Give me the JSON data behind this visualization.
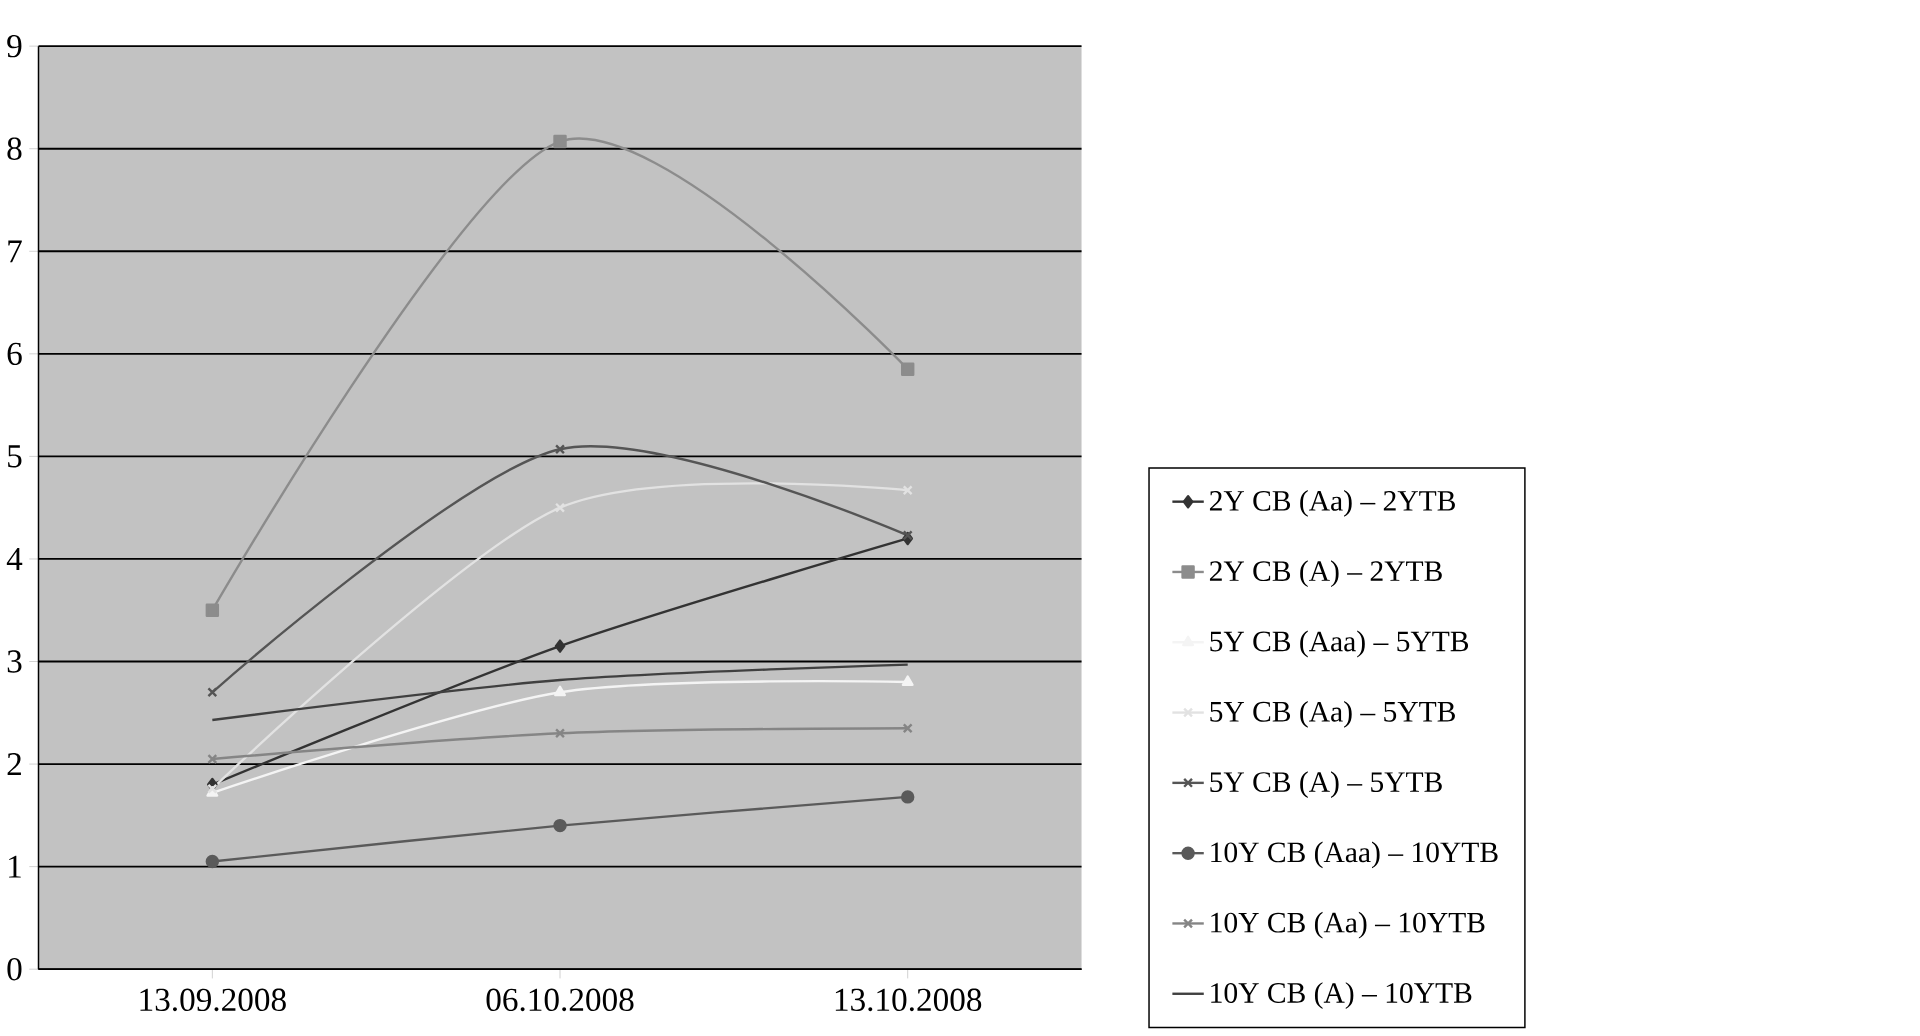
{
  "chart_data": {
    "type": "line",
    "categories": [
      "13.09.2008",
      "06.10.2008",
      "13.10.2008"
    ],
    "series": [
      {
        "name": "2Y CB (Aa) – 2YTB",
        "color": "#333333",
        "marker": "diamond",
        "values": [
          1.8,
          3.15,
          4.2
        ]
      },
      {
        "name": "2Y CB (A) – 2YTB",
        "color": "#8c8c8c",
        "marker": "square",
        "values": [
          3.5,
          8.07,
          5.85
        ]
      },
      {
        "name": "5Y CB (Aaa) – 5YTB",
        "color": "#f4f4f4",
        "marker": "triangle",
        "values": [
          1.72,
          2.7,
          2.8
        ]
      },
      {
        "name": "5Y CB (Aa) – 5YTB",
        "color": "#e2e2e2",
        "marker": "cross",
        "values": [
          1.76,
          4.5,
          4.67
        ]
      },
      {
        "name": "5Y CB (A) – 5YTB",
        "color": "#555555",
        "marker": "cross",
        "values": [
          2.7,
          5.07,
          4.23
        ]
      },
      {
        "name": "10Y CB (Aaa) – 10YTB",
        "color": "#5a5a5a",
        "marker": "circle",
        "values": [
          1.05,
          1.4,
          1.68
        ]
      },
      {
        "name": "10Y CB (Aa) – 10YTB",
        "color": "#858585",
        "marker": "cross",
        "values": [
          2.05,
          2.3,
          2.35
        ]
      },
      {
        "name": "10Y CB (A) – 10YTB",
        "color": "#404040",
        "marker": "none",
        "values": [
          2.43,
          2.82,
          2.97
        ]
      }
    ],
    "ylim": [
      0,
      9
    ],
    "yticks": [
      0,
      1,
      2,
      3,
      4,
      5,
      6,
      7,
      8,
      9
    ],
    "grid": "y",
    "legend": "right",
    "line_style": "solid"
  }
}
